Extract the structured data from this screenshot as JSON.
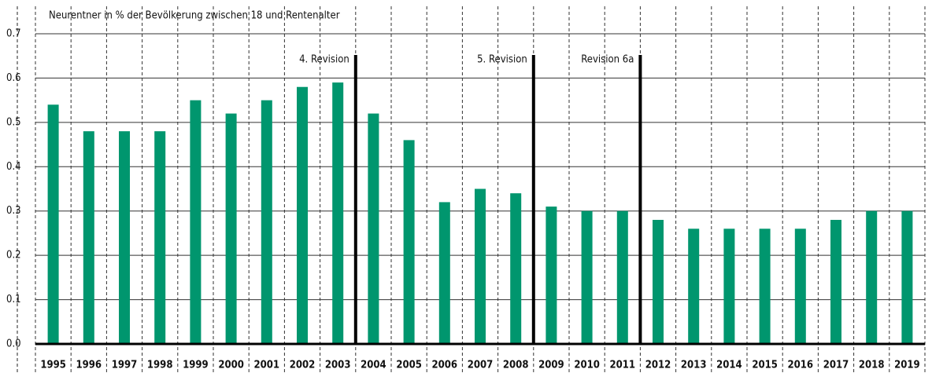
{
  "chart_data": {
    "type": "bar",
    "title": "Neurentner in % der Bevölkerung zwischen 18 und Rentenalter",
    "categories": [
      "1995",
      "1996",
      "1997",
      "1998",
      "1999",
      "2000",
      "2001",
      "2002",
      "2003",
      "2004",
      "2005",
      "2006",
      "2007",
      "2008",
      "2009",
      "2010",
      "2011",
      "2012",
      "2013",
      "2014",
      "2015",
      "2016",
      "2017",
      "2018",
      "2019"
    ],
    "values": [
      0.54,
      0.48,
      0.48,
      0.48,
      0.55,
      0.52,
      0.55,
      0.58,
      0.59,
      0.52,
      0.46,
      0.32,
      0.35,
      0.34,
      0.31,
      0.3,
      0.3,
      0.28,
      0.26,
      0.26,
      0.26,
      0.26,
      0.28,
      0.3,
      0.3
    ],
    "color": "#00966e",
    "ylim": [
      0,
      0.7
    ],
    "yticks": [
      {
        "value": 0,
        "label": "0.0"
      },
      0.1,
      0.2,
      0.3,
      0.4,
      0.5,
      0.6,
      0.7
    ],
    "grid": true,
    "annotations": [
      {
        "text": "4. Revision",
        "after": "2003"
      },
      {
        "text": "5. Revision",
        "after": "2008"
      },
      {
        "text": "Revision 6a",
        "after": "2011"
      }
    ]
  }
}
